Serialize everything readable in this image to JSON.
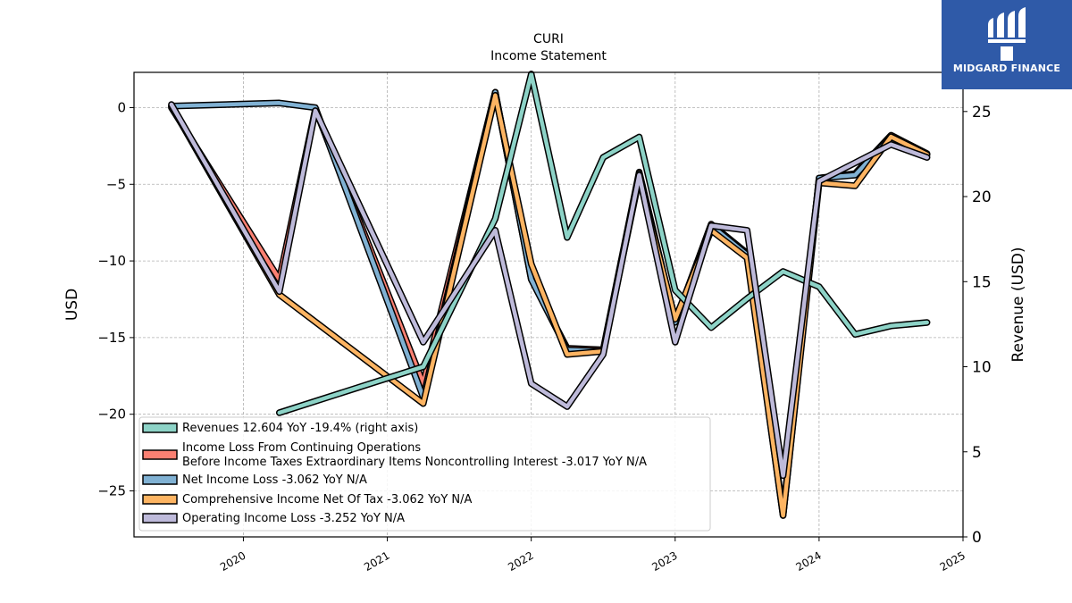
{
  "logo": {
    "text": "MIDGARD FINANCE"
  },
  "chart_data": {
    "type": "line",
    "title": "CURI",
    "subtitle": "Income Statement",
    "ylabel_left": "USD",
    "ylabel_right": "Revenue (USD)",
    "left_ylim": [
      -28.0,
      2.3
    ],
    "right_ylim": [
      0,
      27.3
    ],
    "xlim": [
      2019.24,
      2025.0
    ],
    "x_ticks": [
      2020,
      2021,
      2022,
      2023,
      2024,
      2025
    ],
    "x_tick_labels": [
      "2020",
      "2021",
      "2022",
      "2023",
      "2024",
      "2025"
    ],
    "left_ticks": [
      0,
      -5,
      -10,
      -15,
      -20,
      -25
    ],
    "left_tick_labels": [
      "0",
      "−5",
      "−10",
      "−15",
      "−20",
      "−25"
    ],
    "right_ticks": [
      0,
      5,
      10,
      15,
      20,
      25
    ],
    "right_tick_labels": [
      "0",
      "5",
      "10",
      "15",
      "20",
      "25"
    ],
    "grid": true,
    "legend_position": "lower-left",
    "series": [
      {
        "name": "Revenues  12.604 YoY -19.4% (right axis)",
        "axis": "right",
        "color": "#8dd3c7",
        "x": [
          2020.25,
          2021.25,
          2021.75,
          2022.0,
          2022.25,
          2022.5,
          2022.75,
          2023.0,
          2023.25,
          2023.5,
          2023.75,
          2024.0,
          2024.25,
          2024.5,
          2024.75
        ],
        "y": [
          7.3,
          10.0,
          18.7,
          27.2,
          17.6,
          22.3,
          23.5,
          14.5,
          12.3,
          14.0,
          15.6,
          14.7,
          11.9,
          12.4,
          12.6
        ]
      },
      {
        "name": "Income Loss From Continuing Operations\nBefore Income Taxes Extraordinary Items Noncontrolling Interest  -3.017 YoY N/A",
        "axis": "left",
        "color": "#fb8072",
        "x": [
          2019.5,
          2020.25,
          2020.5,
          2021.25,
          2021.75,
          2022.0,
          2022.25,
          2022.5,
          2022.75,
          2023.0,
          2023.25,
          2023.5,
          2023.75,
          2024.0,
          2024.25,
          2024.5,
          2024.75
        ],
        "y": [
          0.0,
          -11.2,
          -0.1,
          -18.0,
          1.0,
          -11.2,
          -15.7,
          -15.8,
          -4.2,
          -14.0,
          -7.6,
          -9.5,
          -26.5,
          -4.6,
          -4.3,
          -1.8,
          -3.0
        ]
      },
      {
        "name": "Net Income Loss  -3.062 YoY N/A",
        "axis": "left",
        "color": "#80b1d3",
        "x": [
          2019.5,
          2020.25,
          2020.5,
          2021.25,
          2021.75,
          2022.0,
          2022.25,
          2022.5,
          2022.75,
          2023.0,
          2023.25,
          2023.5,
          2023.75,
          2024.0,
          2024.25,
          2024.5,
          2024.75
        ],
        "y": [
          0.1,
          0.3,
          0.0,
          -18.9,
          1.0,
          -11.2,
          -15.8,
          -15.9,
          -4.3,
          -14.0,
          -7.7,
          -9.6,
          -26.6,
          -4.6,
          -4.4,
          -1.9,
          -3.06
        ]
      },
      {
        "name": "Comprehensive Income Net Of Tax  -3.062 YoY N/A",
        "axis": "left",
        "color": "#fdb462",
        "x": [
          2019.5,
          2020.25,
          2021.25,
          2021.75,
          2022.0,
          2022.25,
          2022.5,
          2022.75,
          2023.0,
          2023.25,
          2023.5,
          2023.75,
          2024.0,
          2024.25,
          2024.5,
          2024.75
        ],
        "y": [
          0.1,
          -12.2,
          -19.3,
          0.8,
          -10.2,
          -16.1,
          -15.9,
          -4.6,
          -13.8,
          -8.0,
          -9.8,
          -26.6,
          -4.9,
          -5.1,
          -1.9,
          -3.06
        ]
      },
      {
        "name": "Operating Income Loss  -3.252 YoY N/A",
        "axis": "left",
        "color": "#bebada",
        "x": [
          2019.5,
          2020.25,
          2020.5,
          2021.25,
          2021.75,
          2022.0,
          2022.25,
          2022.5,
          2022.75,
          2023.0,
          2023.25,
          2023.5,
          2023.75,
          2024.0,
          2024.25,
          2024.5,
          2024.75
        ],
        "y": [
          0.2,
          -12.0,
          -0.2,
          -15.3,
          -8.0,
          -18.0,
          -19.5,
          -16.1,
          -4.4,
          -15.3,
          -7.7,
          -8.0,
          -24.0,
          -4.8,
          -3.6,
          -2.4,
          -3.25
        ]
      }
    ]
  }
}
